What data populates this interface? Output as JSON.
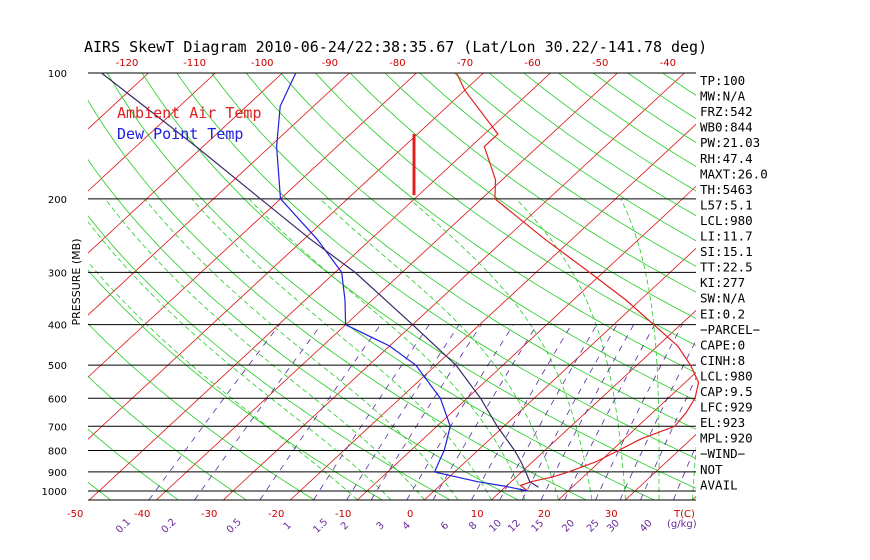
{
  "chart_data": {
    "type": "skew-t",
    "title": "AIRS SkewT Diagram 2010-06-24/22:38:35.67 (Lat/Lon 30.22/-141.78 deg)",
    "ylabel": "PRESSURE (MB)",
    "y_tick_labels": [
      "100",
      "200",
      "300",
      "400",
      "500",
      "600",
      "700",
      "800",
      "900",
      "1000"
    ],
    "top_temp_labels": [
      "-120",
      "-110",
      "-100",
      "-90",
      "-80",
      "-70",
      "-60",
      "-50",
      "-40"
    ],
    "bottom_temp_labels": [
      "-50",
      "-40",
      "-30",
      "-20",
      "-10",
      "0",
      "10",
      "20",
      "30"
    ],
    "bottom_temp_unit": "T(C)",
    "mixing_ratio_labels": [
      "0.1",
      "0.2",
      "0.5",
      "1",
      "1.5",
      "2",
      "3",
      "4",
      "6",
      "8",
      "10",
      "12",
      "15",
      "20",
      "25",
      "30",
      "40"
    ],
    "mixing_ratio_unit": "(g/kg)",
    "legend": [
      {
        "label": "Ambient Air Temp",
        "color": "#e22020"
      },
      {
        "label": "Dew Point Temp",
        "color": "#2020dd"
      }
    ],
    "series": [
      {
        "name": "Ambient Air Temp",
        "color": "#e22020",
        "points": [
          [
            1000,
            14
          ],
          [
            970,
            12
          ],
          [
            950,
            13
          ],
          [
            925,
            15.5
          ],
          [
            900,
            17
          ],
          [
            850,
            19.5
          ],
          [
            800,
            21
          ],
          [
            750,
            22.5
          ],
          [
            700,
            25.5
          ],
          [
            650,
            25
          ],
          [
            600,
            24
          ],
          [
            550,
            22
          ],
          [
            500,
            18
          ],
          [
            450,
            13
          ],
          [
            400,
            6
          ],
          [
            350,
            -2
          ],
          [
            300,
            -12
          ],
          [
            250,
            -24
          ],
          [
            200,
            -38
          ],
          [
            180,
            -41
          ],
          [
            150,
            -48
          ],
          [
            140,
            -48
          ],
          [
            110,
            -60
          ],
          [
            100,
            -64
          ]
        ]
      },
      {
        "name": "Dew Point Temp",
        "color": "#2020dd",
        "points": [
          [
            1000,
            14
          ],
          [
            975,
            10
          ],
          [
            950,
            5
          ],
          [
            925,
            1
          ],
          [
            900,
            -3
          ],
          [
            850,
            -4
          ],
          [
            800,
            -5
          ],
          [
            700,
            -8
          ],
          [
            600,
            -14
          ],
          [
            500,
            -23
          ],
          [
            450,
            -30
          ],
          [
            400,
            -40
          ],
          [
            350,
            -44
          ],
          [
            300,
            -49
          ],
          [
            250,
            -58
          ],
          [
            200,
            -70
          ],
          [
            150,
            -79
          ],
          [
            120,
            -85
          ],
          [
            100,
            -88
          ]
        ]
      },
      {
        "name": "Parcel",
        "color": "#3a2a6a",
        "points": [
          [
            980,
            15
          ],
          [
            950,
            12.8
          ],
          [
            900,
            10.6
          ],
          [
            850,
            8.2
          ],
          [
            800,
            5.5
          ],
          [
            700,
            -1
          ],
          [
            600,
            -8
          ],
          [
            500,
            -17
          ],
          [
            400,
            -30
          ],
          [
            300,
            -47
          ],
          [
            250,
            -59
          ],
          [
            200,
            -73
          ],
          [
            150,
            -91
          ],
          [
            100,
            -117
          ]
        ]
      }
    ],
    "stats": [
      "TP:100",
      "MW:N/A",
      "FRZ:542",
      "WB0:844",
      "PW:21.03",
      "RH:47.4",
      "MAXT:26.0",
      "TH:5463",
      "L57:5.1",
      "LCL:980",
      "LI:11.7",
      "SI:15.1",
      "TT:22.5",
      "KI:277",
      "SW:N/A",
      "EI:0.2",
      "−PARCEL−",
      "CAPE:0",
      "CINH:8",
      "LCL:980",
      "CAP:9.5",
      "LFC:929",
      "EL:923",
      "MPL:920",
      "−WIND−",
      "NOT",
      "AVAIL"
    ],
    "grid": true,
    "colors": {
      "isotherm": "#dd1111",
      "dry_adiabat": "#22cc22",
      "moist_adiabat": "#22cc22",
      "mixing_ratio": "#5a2aa0",
      "isobar": "#000000"
    }
  }
}
